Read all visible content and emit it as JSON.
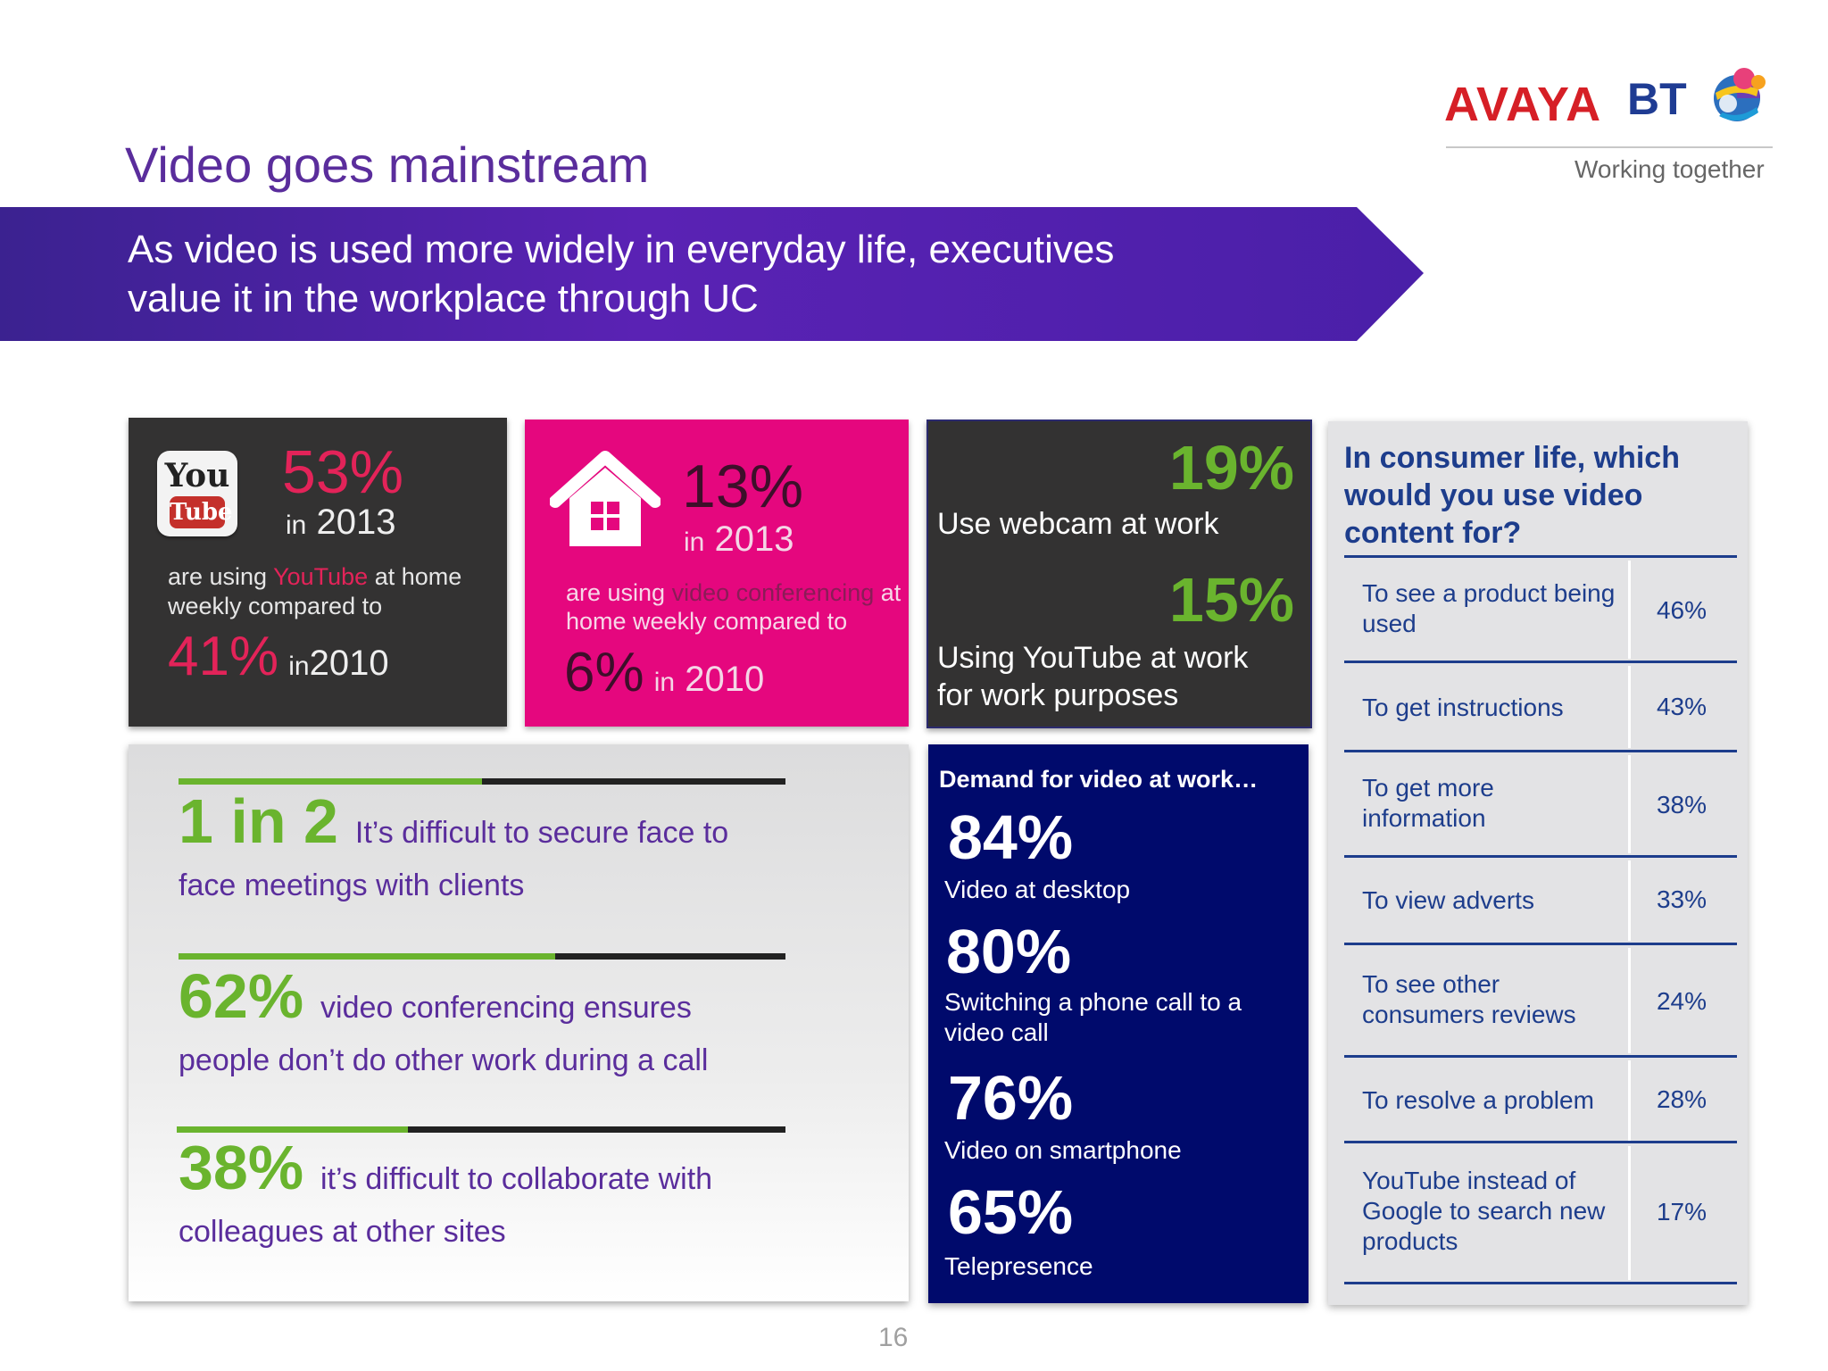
{
  "header": {
    "title": "Video goes mainstream",
    "banner_line1": "As video is used more widely in everyday life, executives",
    "banner_line2": "value it in the workplace through UC"
  },
  "logos": {
    "avaya": "AVAYA",
    "bt": "BT",
    "tagline": "Working together"
  },
  "youtube_tile": {
    "logo_top": "You",
    "logo_bottom": "Tube",
    "percent": "53%",
    "in_word": "in",
    "year": "2013",
    "desc_pre": "are using ",
    "desc_highlight": "YouTube",
    "desc_post": " at home weekly compared to",
    "compare_percent": "41%",
    "compare_in": "in",
    "compare_year": "2010"
  },
  "vc_tile": {
    "percent": "13%",
    "in_word": "in",
    "year": "2013",
    "desc_pre": "are using ",
    "desc_highlight": "video conferencing",
    "desc_post": " at home weekly compared to",
    "compare_percent": "6%",
    "compare_in": "in",
    "compare_year": "2010"
  },
  "webcam_tile": {
    "stat1": "19%",
    "label1": "Use webcam at work",
    "stat2": "15%",
    "label2_line1": "Using YouTube at work",
    "label2_line2": "for work purposes"
  },
  "stats": [
    {
      "big": "1 in 2",
      "line1": "It’s difficult to secure face to",
      "line2": "face meetings with clients",
      "fill": 0.5
    },
    {
      "big": "62%",
      "line1": "video conferencing ensures",
      "line2": "people don’t do other work during a call",
      "fill": 0.62
    },
    {
      "big": "38%",
      "line1": "it’s difficult to collaborate with",
      "line2": "colleagues at other sites",
      "fill": 0.38
    }
  ],
  "demand": {
    "title": "Demand for video at work…",
    "items": [
      {
        "percent": "84%",
        "label": "Video at desktop"
      },
      {
        "percent": "80%",
        "label": "Switching a phone call to a video call"
      },
      {
        "percent": "76%",
        "label": "Video on smartphone"
      },
      {
        "percent": "65%",
        "label": "Telepresence"
      }
    ]
  },
  "consumer": {
    "title": "In consumer life, which would you use video content for?",
    "rows": [
      {
        "label": "To see a product being used",
        "value": "46%"
      },
      {
        "label": "To get instructions",
        "value": "43%"
      },
      {
        "label": "To get more information",
        "value": "38%"
      },
      {
        "label": "To view adverts",
        "value": "33%"
      },
      {
        "label": "To see other consumers reviews",
        "value": "24%"
      },
      {
        "label": "To resolve a problem",
        "value": "28%"
      },
      {
        "label": "YouTube instead of Google to search new products",
        "value": "17%"
      }
    ]
  },
  "footer": {
    "page_number": "16"
  },
  "colors": {
    "title_purple": "#5a2d9c",
    "banner_purple": "#4a1fa8",
    "green": "#6ab42e",
    "magenta": "#e5077e",
    "navy": "#000a6c",
    "table_blue": "#1d3d8c"
  }
}
